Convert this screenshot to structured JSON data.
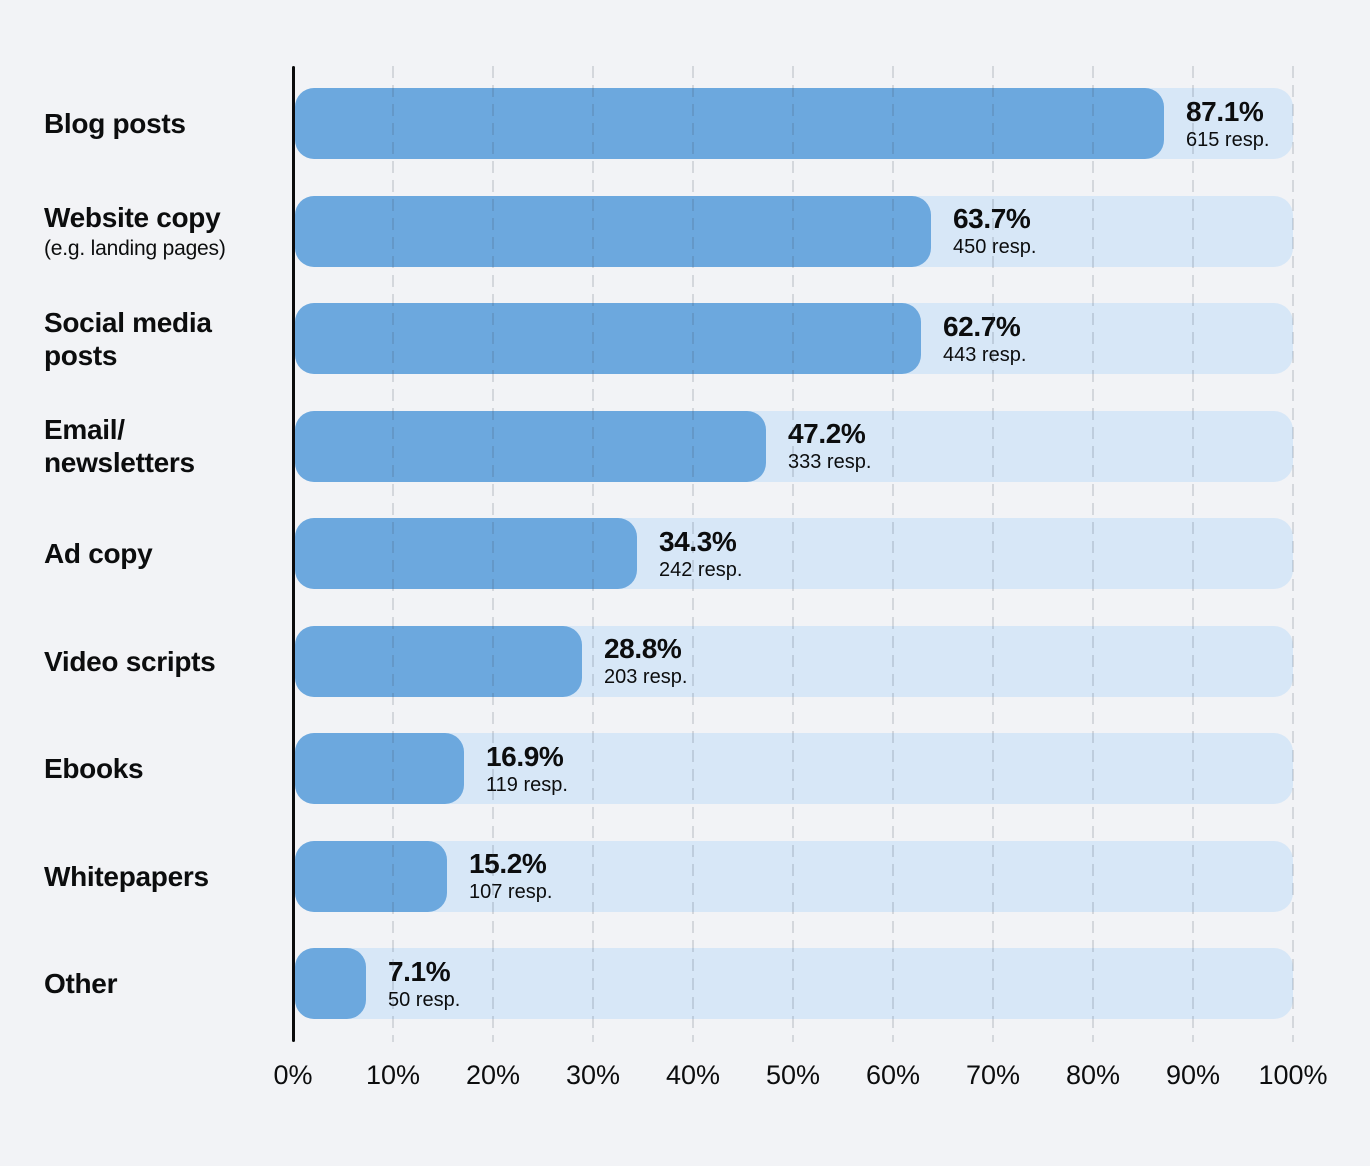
{
  "page": {
    "background": "#F2F3F6",
    "text_color": "#0C0D0E"
  },
  "chart_data": {
    "type": "bar",
    "orientation": "horizontal",
    "xlim": [
      0,
      100
    ],
    "grid": "vertical-dashed",
    "legend": "none",
    "x_ticks": [
      "0%",
      "10%",
      "20%",
      "30%",
      "40%",
      "50%",
      "60%",
      "70%",
      "80%",
      "90%",
      "100%"
    ],
    "colors": {
      "bar": "#6CA8DE",
      "track": "#D7E7F7",
      "axis": "#0B0B0C",
      "gridline": "rgba(58,70,84,0.16)",
      "text": "#0C0D0E"
    },
    "rows": [
      {
        "category": "Blog posts",
        "label_lines": [
          "Blog posts"
        ],
        "sublabel": "",
        "value": 87.1,
        "value_label": "87.1%",
        "responses": 615,
        "responses_label": "615 resp."
      },
      {
        "category": "Website copy (e.g. landing pages)",
        "label_lines": [
          "Website copy"
        ],
        "sublabel": "(e.g. landing pages)",
        "value": 63.7,
        "value_label": "63.7%",
        "responses": 450,
        "responses_label": "450 resp."
      },
      {
        "category": "Social media posts",
        "label_lines": [
          "Social media",
          "posts"
        ],
        "sublabel": "",
        "value": 62.7,
        "value_label": "62.7%",
        "responses": 443,
        "responses_label": "443 resp."
      },
      {
        "category": "Email/newsletters",
        "label_lines": [
          "Email/",
          "newsletters"
        ],
        "sublabel": "",
        "value": 47.2,
        "value_label": "47.2%",
        "responses": 333,
        "responses_label": "333 resp."
      },
      {
        "category": "Ad copy",
        "label_lines": [
          "Ad copy"
        ],
        "sublabel": "",
        "value": 34.3,
        "value_label": "34.3%",
        "responses": 242,
        "responses_label": "242 resp."
      },
      {
        "category": "Video scripts",
        "label_lines": [
          "Video scripts"
        ],
        "sublabel": "",
        "value": 28.8,
        "value_label": "28.8%",
        "responses": 203,
        "responses_label": "203 resp."
      },
      {
        "category": "Ebooks",
        "label_lines": [
          "Ebooks"
        ],
        "sublabel": "",
        "value": 16.9,
        "value_label": "16.9%",
        "responses": 119,
        "responses_label": "119 resp."
      },
      {
        "category": "Whitepapers",
        "label_lines": [
          "Whitepapers"
        ],
        "sublabel": "",
        "value": 15.2,
        "value_label": "15.2%",
        "responses": 107,
        "responses_label": "107 resp."
      },
      {
        "category": "Other",
        "label_lines": [
          "Other"
        ],
        "sublabel": "",
        "value": 7.1,
        "value_label": "7.1%",
        "responses": 50,
        "responses_label": "50 resp."
      }
    ]
  }
}
